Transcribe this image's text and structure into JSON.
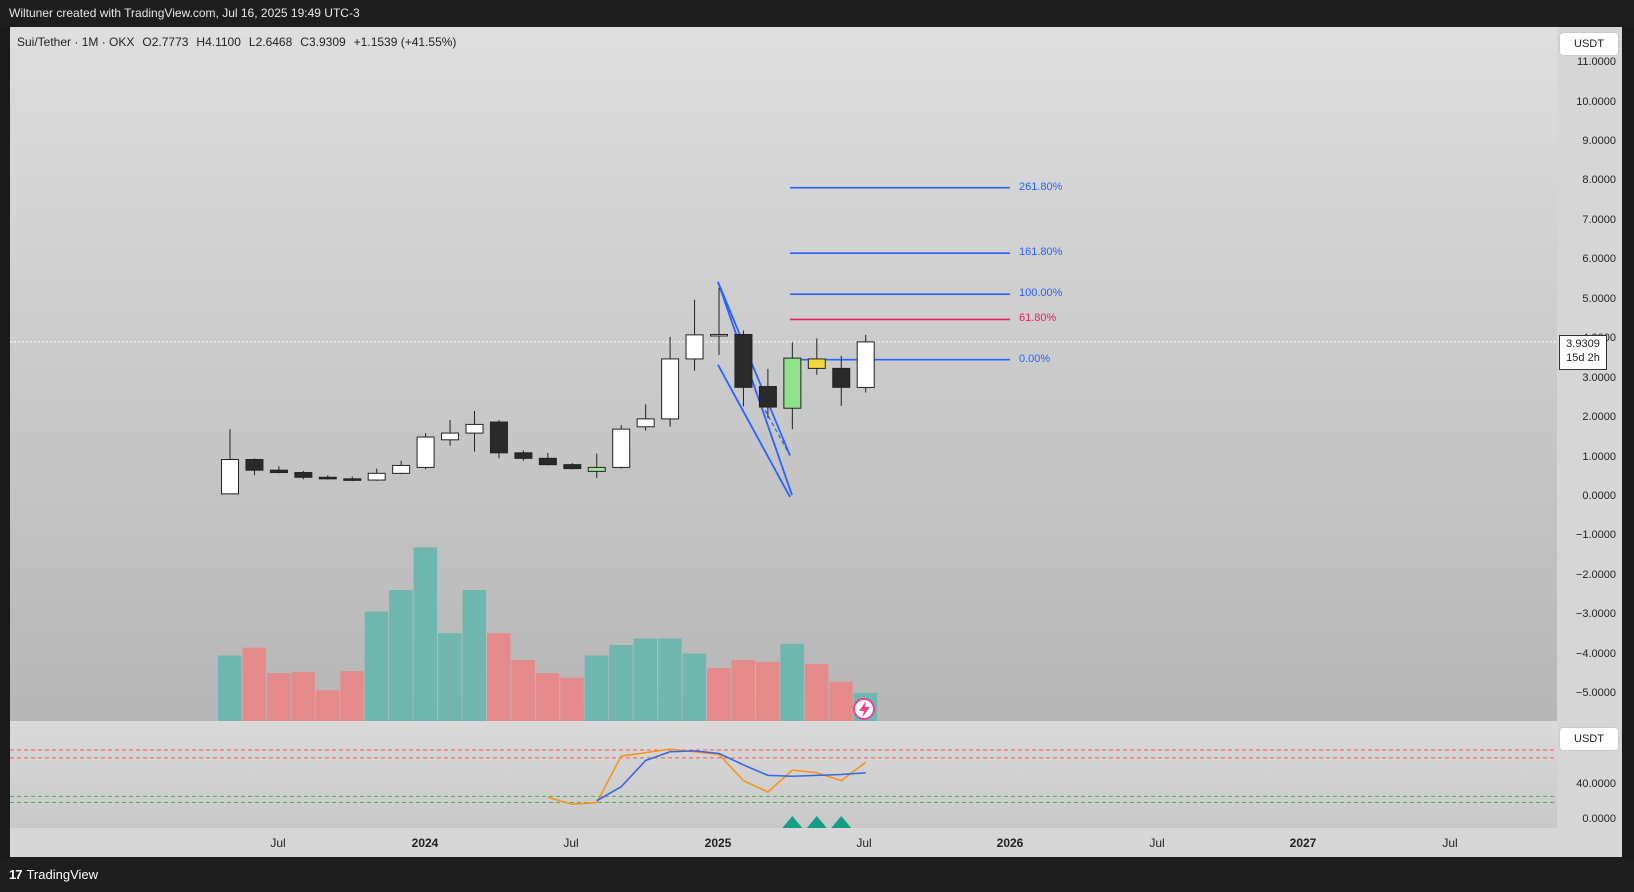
{
  "header": {
    "attribution": "Wiltuner created with TradingView.com, Jul 16, 2025 19:49 UTC-3"
  },
  "legend": {
    "symbol": "Sui/Tether · 1M · OKX",
    "open": "O2.7773",
    "high": "H4.1100",
    "low": "L2.6468",
    "close": "C3.9309",
    "change": "+1.1539 (+41.55%)"
  },
  "price_axis": {
    "currency": "USDT",
    "ticks": [
      "11.0000",
      "10.0000",
      "9.0000",
      "8.0000",
      "7.0000",
      "6.0000",
      "5.0000",
      "4.0000",
      "3.0000",
      "2.0000",
      "1.0000",
      "0.0000",
      "−1.0000",
      "−2.0000",
      "−3.0000",
      "−4.0000",
      "−5.0000"
    ],
    "current_price": "3.9309",
    "countdown": "15d 2h"
  },
  "indicator_axis": {
    "currency": "USDT",
    "ticks": [
      "40.0000",
      "0.0000"
    ]
  },
  "time_axis": {
    "labels": [
      {
        "text": "Jul",
        "year": false
      },
      {
        "text": "2024",
        "year": true
      },
      {
        "text": "Jul",
        "year": false
      },
      {
        "text": "2025",
        "year": true
      },
      {
        "text": "Jul",
        "year": false
      },
      {
        "text": "2026",
        "year": true
      },
      {
        "text": "Jul",
        "year": false
      },
      {
        "text": "2027",
        "year": true
      },
      {
        "text": "Jul",
        "year": false
      }
    ]
  },
  "fib_levels": [
    {
      "label": "261.80%",
      "price": 7.84,
      "color": "#2962ff"
    },
    {
      "label": "161.80%",
      "price": 6.18,
      "color": "#2962ff"
    },
    {
      "label": "100.00%",
      "price": 5.14,
      "color": "#2962ff"
    },
    {
      "label": "61.80%",
      "price": 4.5,
      "color": "#e91e63"
    },
    {
      "label": "0.00%",
      "price": 3.48,
      "color": "#2962ff"
    }
  ],
  "footer": {
    "brand": "TradingView"
  },
  "colors": {
    "bull": "#ffffff",
    "bear": "#2a2a2a",
    "vol_up": "#6fb6ae",
    "vol_down": "#e58a8a",
    "fib_blue": "#2962ff",
    "fib_red": "#e91e63",
    "stoch_k": "#3568e0",
    "stoch_d": "#f7931a",
    "signal": "#159e86"
  },
  "chart_data": {
    "type": "candlestick",
    "title": "Sui/Tether · 1M · OKX",
    "ylim": [
      -5.5,
      11.5
    ],
    "candles": [
      {
        "o": 0.08,
        "h": 1.72,
        "l": 0.08,
        "c": 0.95
      },
      {
        "o": 0.95,
        "h": 0.98,
        "l": 0.55,
        "c": 0.68
      },
      {
        "o": 0.68,
        "h": 0.78,
        "l": 0.6,
        "c": 0.62
      },
      {
        "o": 0.62,
        "h": 0.66,
        "l": 0.45,
        "c": 0.5
      },
      {
        "o": 0.5,
        "h": 0.55,
        "l": 0.44,
        "c": 0.46
      },
      {
        "o": 0.46,
        "h": 0.52,
        "l": 0.4,
        "c": 0.43
      },
      {
        "o": 0.43,
        "h": 0.72,
        "l": 0.41,
        "c": 0.6
      },
      {
        "o": 0.6,
        "h": 0.92,
        "l": 0.58,
        "c": 0.8
      },
      {
        "o": 0.75,
        "h": 1.62,
        "l": 0.7,
        "c": 1.52
      },
      {
        "o": 1.45,
        "h": 1.95,
        "l": 1.3,
        "c": 1.62
      },
      {
        "o": 1.62,
        "h": 2.18,
        "l": 1.15,
        "c": 1.84
      },
      {
        "o": 1.9,
        "h": 1.95,
        "l": 0.98,
        "c": 1.12
      },
      {
        "o": 1.12,
        "h": 1.18,
        "l": 0.92,
        "c": 0.98
      },
      {
        "o": 0.98,
        "h": 1.12,
        "l": 0.8,
        "c": 0.82
      },
      {
        "o": 0.82,
        "h": 0.86,
        "l": 0.7,
        "c": 0.72
      },
      {
        "o": 0.65,
        "h": 1.1,
        "l": 0.48,
        "c": 0.75
      },
      {
        "o": 0.75,
        "h": 1.82,
        "l": 0.72,
        "c": 1.72
      },
      {
        "o": 1.78,
        "h": 2.35,
        "l": 1.68,
        "c": 1.98
      },
      {
        "o": 1.98,
        "h": 4.06,
        "l": 1.78,
        "c": 3.5
      },
      {
        "o": 3.5,
        "h": 5.0,
        "l": 3.2,
        "c": 4.11
      },
      {
        "o": 4.11,
        "h": 5.3,
        "l": 3.6,
        "c": 4.12
      },
      {
        "o": 4.12,
        "h": 4.22,
        "l": 2.3,
        "c": 2.78
      },
      {
        "o": 2.8,
        "h": 3.25,
        "l": 2.0,
        "c": 2.28
      },
      {
        "o": 2.25,
        "h": 3.92,
        "l": 1.72,
        "c": 3.52
      },
      {
        "o": 3.5,
        "h": 4.02,
        "l": 3.1,
        "c": 3.26
      },
      {
        "o": 3.26,
        "h": 3.58,
        "l": 2.31,
        "c": 2.78
      },
      {
        "o": 2.7773,
        "h": 4.11,
        "l": 2.6468,
        "c": 3.9309
      }
    ],
    "volume": [
      {
        "v": 1.0,
        "up": true
      },
      {
        "v": 1.12,
        "up": false
      },
      {
        "v": 0.73,
        "up": false
      },
      {
        "v": 0.75,
        "up": false
      },
      {
        "v": 0.47,
        "up": false
      },
      {
        "v": 0.76,
        "up": false
      },
      {
        "v": 1.67,
        "up": true
      },
      {
        "v": 2.0,
        "up": true
      },
      {
        "v": 2.65,
        "up": true
      },
      {
        "v": 1.34,
        "up": true
      },
      {
        "v": 2.0,
        "up": true
      },
      {
        "v": 1.34,
        "up": false
      },
      {
        "v": 0.93,
        "up": false
      },
      {
        "v": 0.73,
        "up": false
      },
      {
        "v": 0.66,
        "up": false
      },
      {
        "v": 1.0,
        "up": true
      },
      {
        "v": 1.16,
        "up": true
      },
      {
        "v": 1.26,
        "up": true
      },
      {
        "v": 1.26,
        "up": true
      },
      {
        "v": 1.03,
        "up": true
      },
      {
        "v": 0.81,
        "up": false
      },
      {
        "v": 0.93,
        "up": false
      },
      {
        "v": 0.9,
        "up": false
      },
      {
        "v": 1.18,
        "up": true
      },
      {
        "v": 0.87,
        "up": false
      },
      {
        "v": 0.6,
        "up": false
      },
      {
        "v": 0.43,
        "up": true
      }
    ],
    "stoch_k": [
      null,
      null,
      null,
      null,
      null,
      null,
      null,
      null,
      null,
      null,
      null,
      null,
      null,
      null,
      null,
      22,
      38,
      68,
      78,
      79,
      76,
      63,
      51,
      50,
      51,
      52,
      54
    ],
    "stoch_d": [
      null,
      null,
      null,
      null,
      null,
      null,
      null,
      null,
      null,
      null,
      null,
      null,
      null,
      26,
      18,
      20,
      73,
      77,
      81,
      78,
      75,
      45,
      32,
      57,
      54,
      45,
      66
    ],
    "stoch_levels": {
      "upper_a": 80,
      "upper_b": 71,
      "lower_a": 27,
      "lower_b": 20
    },
    "stoch_ylim": [
      -8,
      100
    ],
    "signals": [
      23,
      24,
      25
    ]
  }
}
